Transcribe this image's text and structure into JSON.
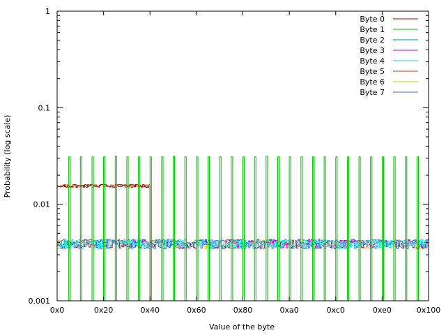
{
  "chart_data": {
    "type": "line",
    "title": "",
    "xlabel": "Value of the byte",
    "ylabel": "Probability (log scale)",
    "xlim": [
      0,
      256
    ],
    "ylim": [
      0.001,
      1
    ],
    "y_scale": "log",
    "grid": false,
    "legend_placement": "top-right",
    "x_ticks": [
      {
        "value": 0,
        "label": "0x0"
      },
      {
        "value": 32,
        "label": "0x20"
      },
      {
        "value": 64,
        "label": "0x40"
      },
      {
        "value": 96,
        "label": "0x60"
      },
      {
        "value": 128,
        "label": "0x80"
      },
      {
        "value": 160,
        "label": "0xa0"
      },
      {
        "value": 192,
        "label": "0xc0"
      },
      {
        "value": 224,
        "label": "0xe0"
      },
      {
        "value": 256,
        "label": "0x100"
      }
    ],
    "y_ticks": [
      {
        "value": 0.001,
        "label": "0.001"
      },
      {
        "value": 0.01,
        "label": "0.01"
      },
      {
        "value": 0.1,
        "label": "0.1"
      },
      {
        "value": 1,
        "label": "1"
      }
    ],
    "series": [
      {
        "name": "Byte 0",
        "color": "#8b0000",
        "x": [
          0,
          64
        ],
        "values": [
          0.0155,
          0.0155
        ],
        "note": "range 0x0-0x40"
      },
      {
        "name": "Byte 1",
        "color": "#00c000",
        "x": [
          8,
          16,
          24,
          32,
          40,
          48,
          56,
          64,
          72,
          80,
          88,
          96,
          104,
          112,
          120,
          128,
          136,
          144,
          152,
          160,
          168,
          176,
          184,
          192,
          200,
          208,
          216,
          224,
          232,
          240,
          248
        ],
        "values": [
          0.031,
          0.031,
          0.031,
          0.031,
          0.0315,
          0.031,
          0.031,
          0.031,
          0.031,
          0.0315,
          0.031,
          0.031,
          0.031,
          0.031,
          0.031,
          0.031,
          0.031,
          0.0315,
          0.031,
          0.031,
          0.031,
          0.031,
          0.031,
          0.031,
          0.031,
          0.031,
          0.031,
          0.031,
          0.031,
          0.031,
          0.031
        ]
      },
      {
        "name": "Byte 2",
        "color": "#0080c0",
        "x": [
          0,
          256
        ],
        "values": [
          0.0039,
          0.0039
        ]
      },
      {
        "name": "Byte 3",
        "color": "#c000c0",
        "x": [
          0,
          256
        ],
        "values": [
          0.0039,
          0.0039
        ]
      },
      {
        "name": "Byte 4",
        "color": "#00e0e0",
        "x": [
          0,
          256
        ],
        "values": [
          0.0039,
          0.0039
        ]
      },
      {
        "name": "Byte 5",
        "color": "#c04000",
        "x": [
          0,
          64
        ],
        "values": [
          0.0155,
          0.0155
        ]
      },
      {
        "name": "Byte 6",
        "color": "#c8c800",
        "x": [
          0,
          256
        ],
        "values": [
          0.0039,
          0.0039
        ]
      },
      {
        "name": "Byte 7",
        "color": "#4169e1",
        "x": [
          0,
          256
        ],
        "values": [
          0.0039,
          0.0039
        ]
      }
    ]
  }
}
